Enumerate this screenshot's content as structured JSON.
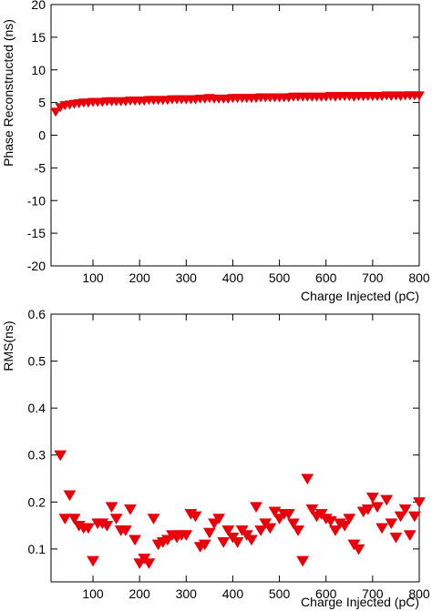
{
  "marker_color": "#e8000b",
  "chart_data": [
    {
      "type": "scatter",
      "xlabel": "Charge Injected (pC)",
      "ylabel": "Phase Reconstructed (ns)",
      "xlim": [
        10,
        800
      ],
      "ylim": [
        -20,
        20
      ],
      "xticks": [
        100,
        200,
        300,
        400,
        500,
        600,
        700,
        800
      ],
      "yticks": [
        -20,
        -15,
        -10,
        -5,
        0,
        5,
        10,
        15,
        20
      ],
      "marker": "down-triangle",
      "series": [
        {
          "x": [
            20,
            30,
            40,
            50,
            60,
            70,
            80,
            90,
            100,
            110,
            120,
            130,
            140,
            150,
            160,
            170,
            180,
            190,
            200,
            210,
            220,
            230,
            240,
            250,
            260,
            270,
            280,
            290,
            300,
            310,
            320,
            330,
            340,
            350,
            360,
            370,
            380,
            390,
            400,
            410,
            420,
            430,
            440,
            450,
            460,
            470,
            480,
            490,
            500,
            510,
            520,
            530,
            540,
            550,
            560,
            570,
            580,
            590,
            600,
            610,
            620,
            630,
            640,
            650,
            660,
            670,
            680,
            690,
            700,
            710,
            720,
            730,
            740,
            750,
            760,
            770,
            780,
            790,
            800
          ],
          "y": [
            3.6,
            4.3,
            4.6,
            4.7,
            4.8,
            4.9,
            5.0,
            5.0,
            5.1,
            5.1,
            5.1,
            5.2,
            5.2,
            5.2,
            5.2,
            5.2,
            5.3,
            5.3,
            5.3,
            5.3,
            5.4,
            5.4,
            5.4,
            5.4,
            5.4,
            5.5,
            5.5,
            5.5,
            5.5,
            5.5,
            5.5,
            5.6,
            5.6,
            5.7,
            5.6,
            5.6,
            5.6,
            5.6,
            5.7,
            5.7,
            5.7,
            5.7,
            5.7,
            5.7,
            5.8,
            5.8,
            5.8,
            5.8,
            5.8,
            5.8,
            5.8,
            5.9,
            5.9,
            5.9,
            5.9,
            5.9,
            5.9,
            5.9,
            5.9,
            6.0,
            5.9,
            6.0,
            6.0,
            6.0,
            5.9,
            6.0,
            6.0,
            6.0,
            6.0,
            6.0,
            6.0,
            6.1,
            6.0,
            6.1,
            6.0,
            6.1,
            6.1,
            6.1,
            6.1
          ]
        }
      ]
    },
    {
      "type": "scatter",
      "xlabel": "Charge Injected (pC)",
      "ylabel": "RMS(ns)",
      "xlim": [
        10,
        800
      ],
      "ylim": [
        0.03,
        0.6
      ],
      "xticks": [
        100,
        200,
        300,
        400,
        500,
        600,
        700,
        800
      ],
      "yticks": [
        0.1,
        0.2,
        0.3,
        0.4,
        0.5,
        0.6
      ],
      "marker": "down-triangle",
      "series": [
        {
          "x": [
            30,
            40,
            50,
            60,
            70,
            80,
            90,
            100,
            110,
            120,
            130,
            140,
            150,
            160,
            170,
            180,
            190,
            200,
            210,
            220,
            230,
            240,
            250,
            260,
            270,
            280,
            290,
            300,
            310,
            320,
            330,
            340,
            350,
            360,
            370,
            380,
            390,
            400,
            410,
            420,
            430,
            440,
            450,
            460,
            470,
            480,
            490,
            500,
            510,
            520,
            530,
            540,
            550,
            560,
            570,
            580,
            590,
            600,
            610,
            620,
            630,
            640,
            650,
            660,
            670,
            680,
            690,
            700,
            710,
            720,
            730,
            740,
            750,
            760,
            770,
            780,
            790,
            800
          ],
          "y": [
            0.3,
            0.165,
            0.215,
            0.165,
            0.15,
            0.145,
            0.145,
            0.075,
            0.155,
            0.155,
            0.15,
            0.19,
            0.165,
            0.14,
            0.14,
            0.185,
            0.12,
            0.07,
            0.08,
            0.07,
            0.165,
            0.11,
            0.115,
            0.12,
            0.13,
            0.125,
            0.13,
            0.13,
            0.175,
            0.17,
            0.105,
            0.11,
            0.135,
            0.155,
            0.165,
            0.115,
            0.14,
            0.125,
            0.115,
            0.14,
            0.13,
            0.12,
            0.19,
            0.14,
            0.155,
            0.145,
            0.18,
            0.165,
            0.175,
            0.175,
            0.155,
            0.14,
            0.075,
            0.25,
            0.185,
            0.17,
            0.175,
            0.165,
            0.16,
            0.14,
            0.155,
            0.15,
            0.165,
            0.11,
            0.1,
            0.18,
            0.185,
            0.21,
            0.19,
            0.145,
            0.205,
            0.155,
            0.125,
            0.17,
            0.185,
            0.13,
            0.17,
            0.2
          ]
        }
      ]
    }
  ]
}
